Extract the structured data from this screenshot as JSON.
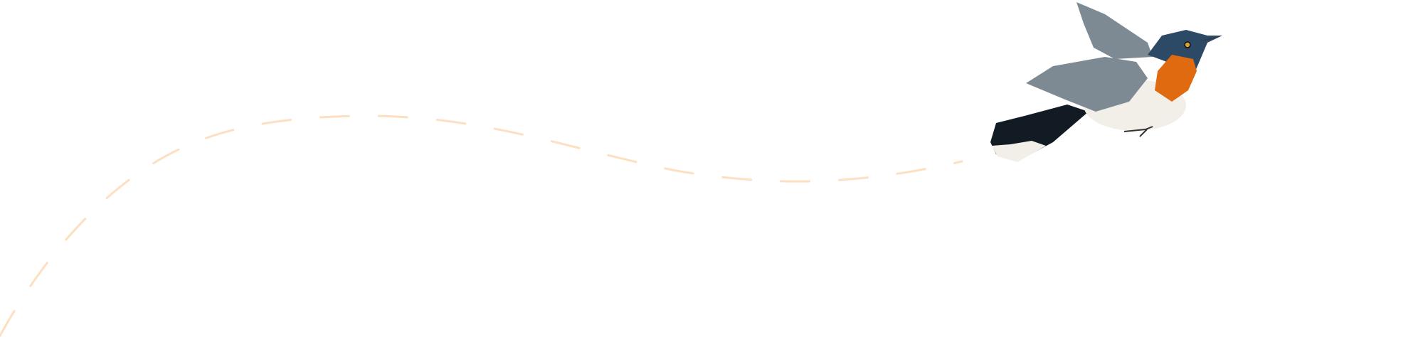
{
  "illustration": {
    "subject": "bird-icon",
    "colors": {
      "path_dash": "#fddfc2",
      "bird_blue": "#2c4a66",
      "bird_dark": "#121a24",
      "bird_orange": "#e06a10",
      "bird_white": "#f2efe8",
      "wing_gray": "#7d8a93"
    }
  }
}
